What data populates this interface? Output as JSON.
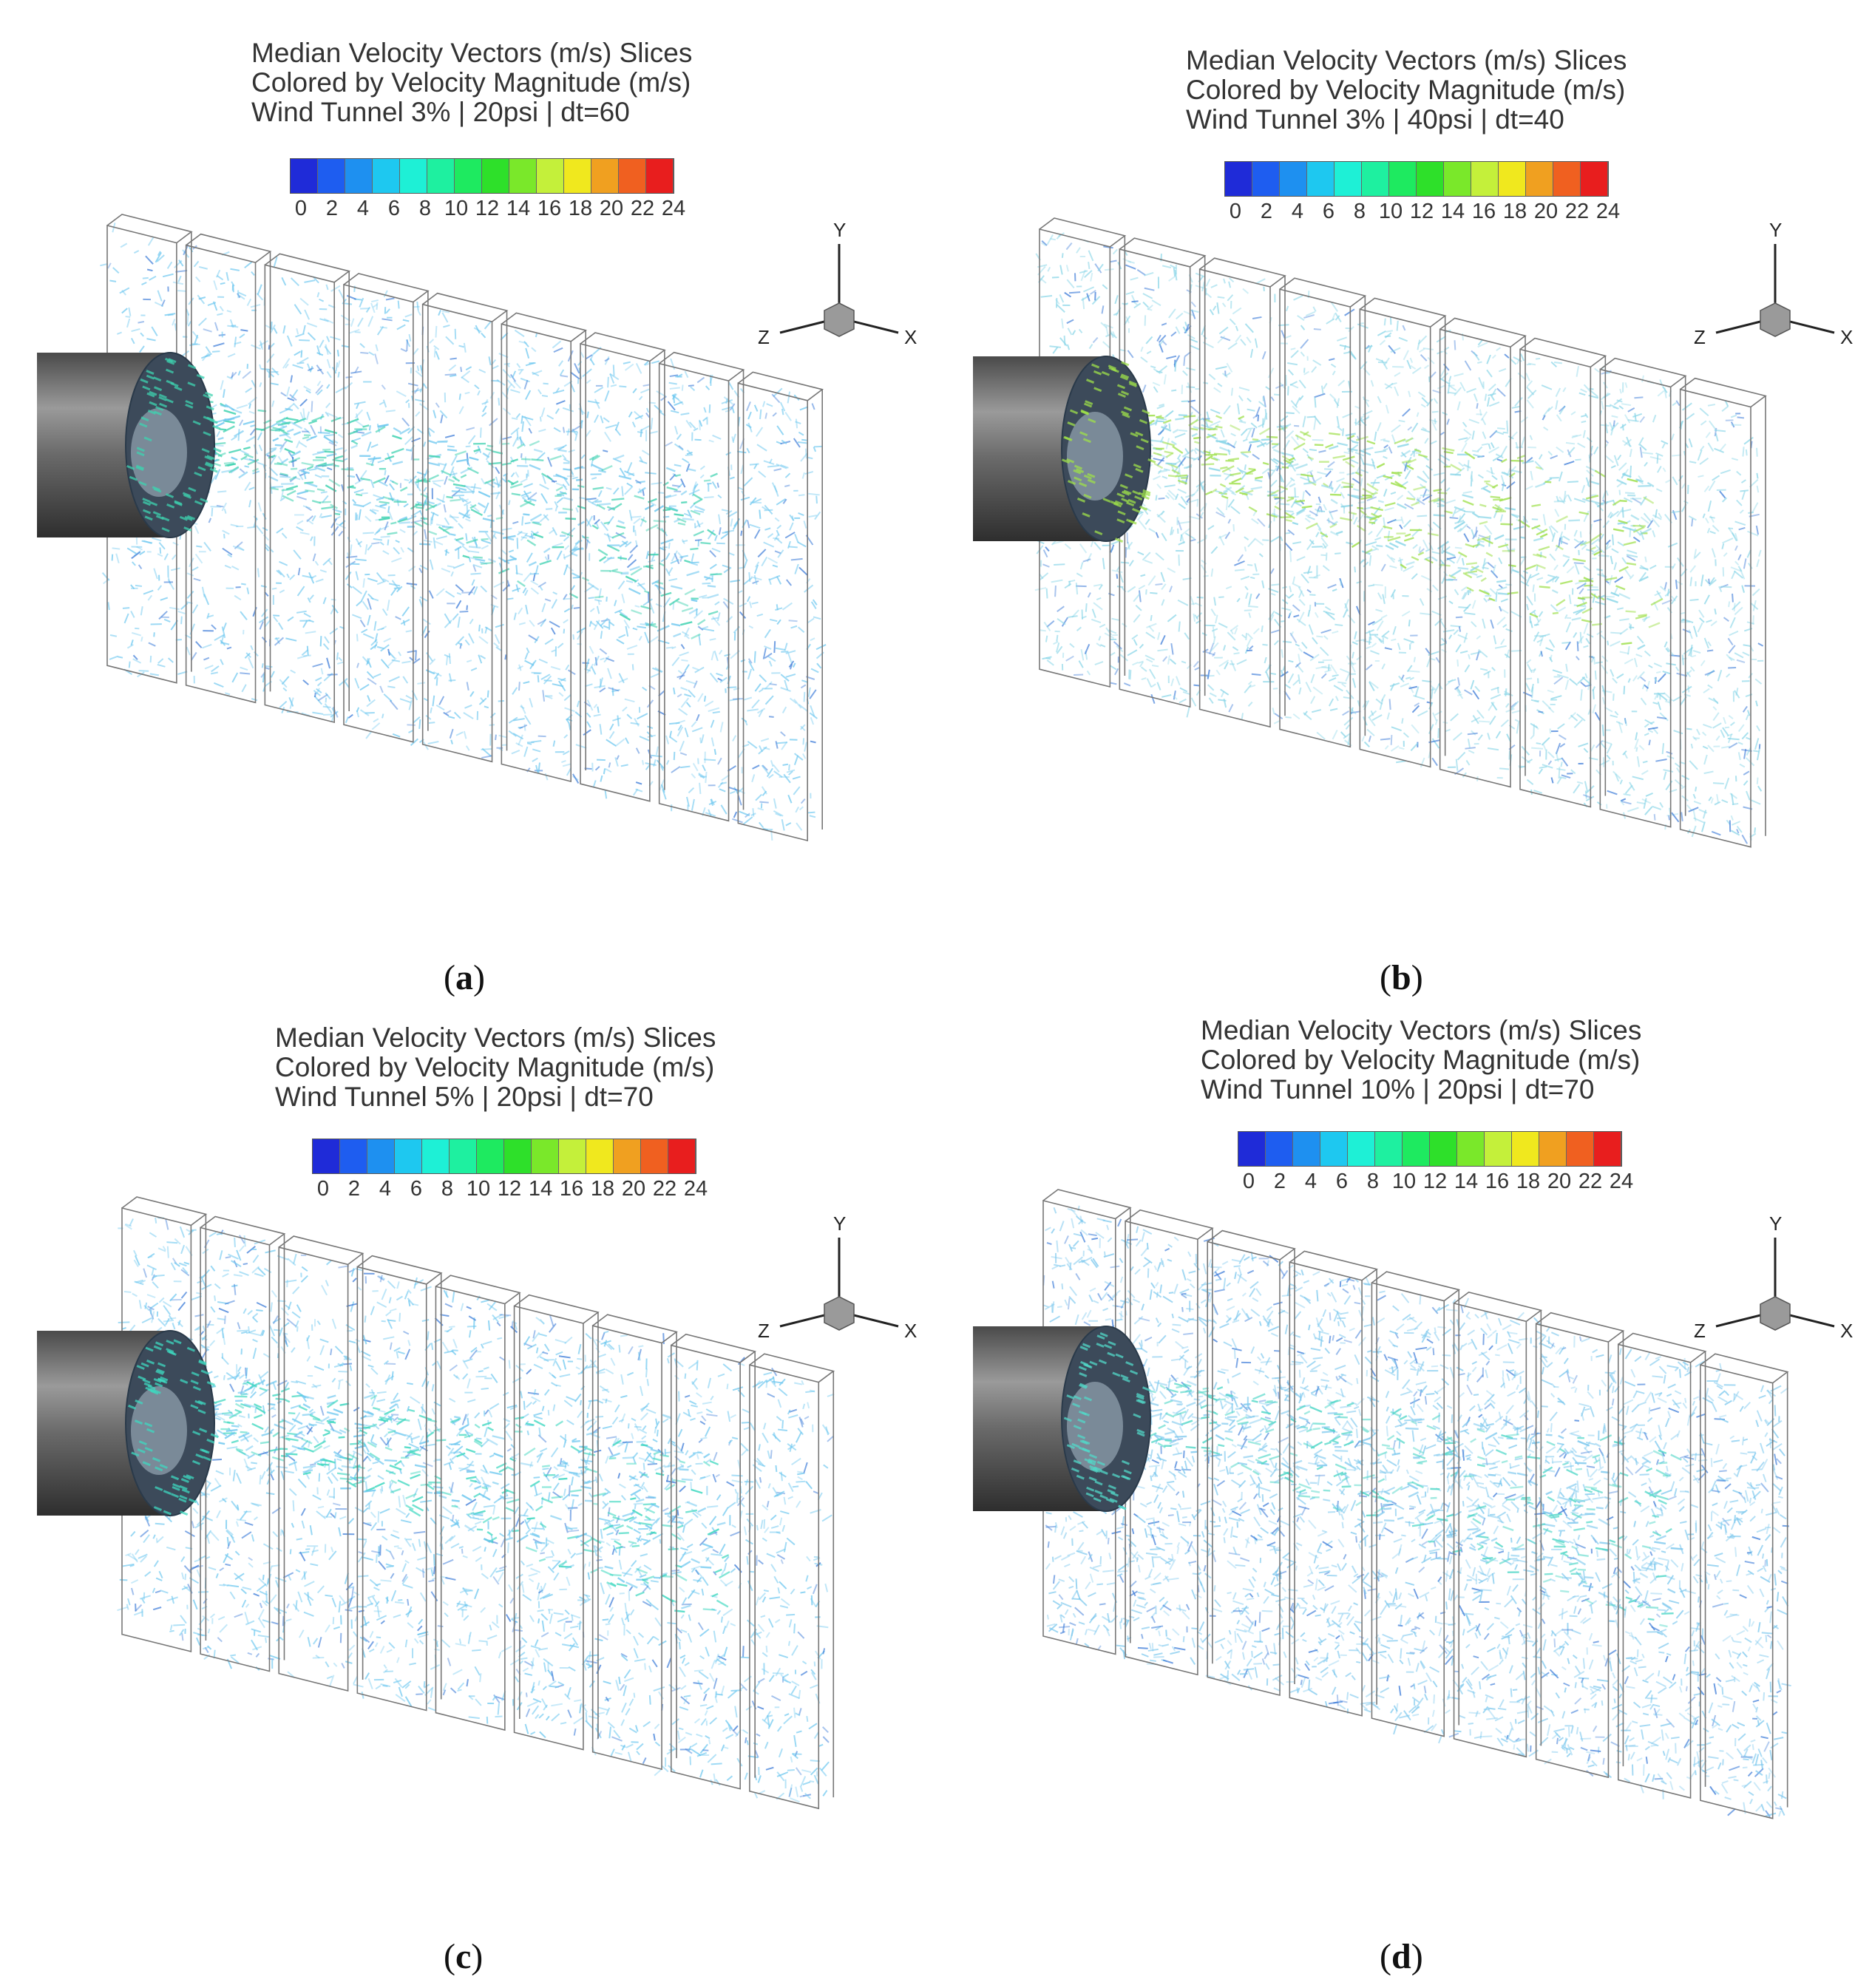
{
  "colorbar": {
    "tick_labels": [
      "0",
      "2",
      "4",
      "6",
      "8",
      "10",
      "12",
      "14",
      "16",
      "18",
      "20",
      "22",
      "24"
    ],
    "colors": [
      "#1f2bd8",
      "#1e5df0",
      "#1e90f0",
      "#1ec8f0",
      "#1ef0d6",
      "#1ef0a0",
      "#1eea60",
      "#2ee02a",
      "#7ae82a",
      "#c4f03a",
      "#f0e81e",
      "#f0a020",
      "#f06020",
      "#e81e1e"
    ]
  },
  "axis": {
    "y_label": "Y",
    "z_label": "Z",
    "x_label": "X"
  },
  "panels": [
    {
      "id": "a",
      "title_lines": [
        "Median Velocity Vectors (m/s) Slices",
        "Colored by Velocity Magnitude (m/s)",
        "Wind Tunnel 3% | 20psi | dt=60"
      ],
      "caption_open": "(",
      "caption_letter": "a",
      "caption_close": ")",
      "field_intensity": 0.35,
      "field_hue": "#6ec8f0",
      "jet_color": "#3ed2b0"
    },
    {
      "id": "b",
      "title_lines": [
        "Median Velocity Vectors (m/s) Slices",
        "Colored by Velocity Magnitude (m/s)",
        "Wind Tunnel 3% | 40psi | dt=40"
      ],
      "caption_open": "(",
      "caption_letter": "b",
      "caption_close": ")",
      "field_intensity": 0.45,
      "field_hue": "#8ad6e8",
      "jet_color": "#9ee04a"
    },
    {
      "id": "c",
      "title_lines": [
        "Median Velocity Vectors (m/s) Slices",
        "Colored by Velocity Magnitude (m/s)",
        "Wind Tunnel 5% | 20psi | dt=70"
      ],
      "caption_open": "(",
      "caption_letter": "c",
      "caption_close": ")",
      "field_intensity": 0.35,
      "field_hue": "#6ec8f0",
      "jet_color": "#3ed8c0"
    },
    {
      "id": "d",
      "title_lines": [
        "Median Velocity Vectors (m/s) Slices",
        "Colored by Velocity Magnitude (m/s)",
        "Wind Tunnel 10% | 20psi | dt=70"
      ],
      "caption_open": "(",
      "caption_letter": "d",
      "caption_close": ")",
      "field_intensity": 0.7,
      "field_hue": "#7cc8ee",
      "jet_color": "#52d8c8"
    }
  ]
}
